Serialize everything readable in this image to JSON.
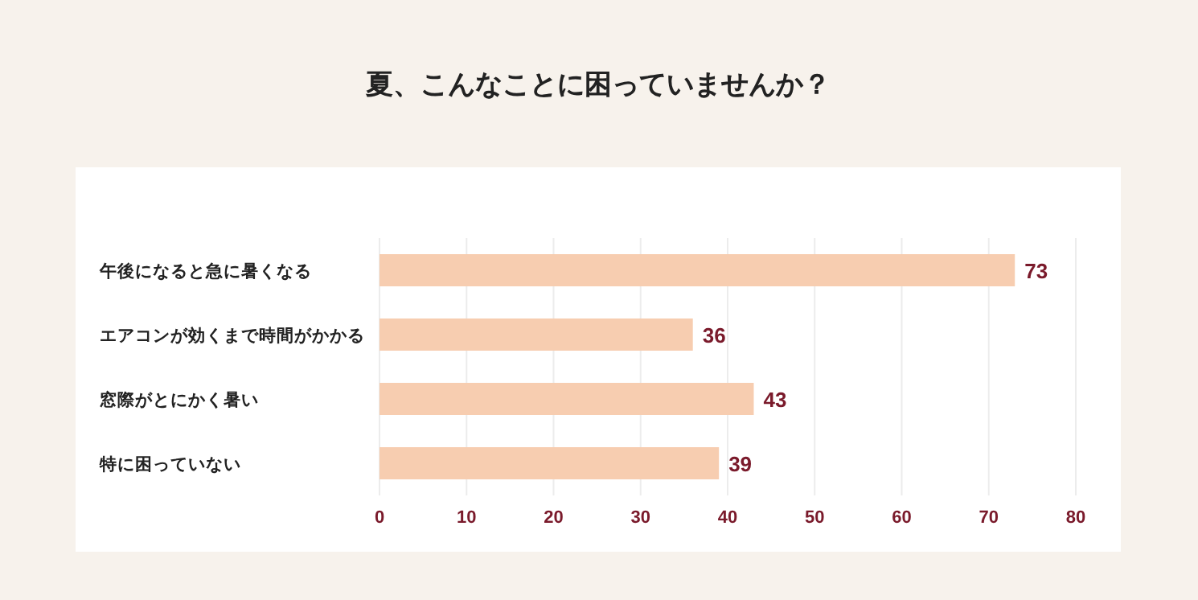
{
  "chart_data": {
    "type": "bar",
    "orientation": "horizontal",
    "title": "夏、こんなことに困っていませんか？",
    "categories": [
      "午後になると急に暑くなる",
      "エアコンが効くまで時間がかかる",
      "窓際がとにかく暑い",
      "特に困っていない"
    ],
    "values": [
      73,
      36,
      43,
      39
    ],
    "color": "#f7cdb0",
    "xlim": [
      0,
      80
    ],
    "xticks": [
      0,
      10,
      20,
      30,
      40,
      50,
      60,
      70,
      80
    ],
    "grid": "x",
    "data_labels": true
  }
}
